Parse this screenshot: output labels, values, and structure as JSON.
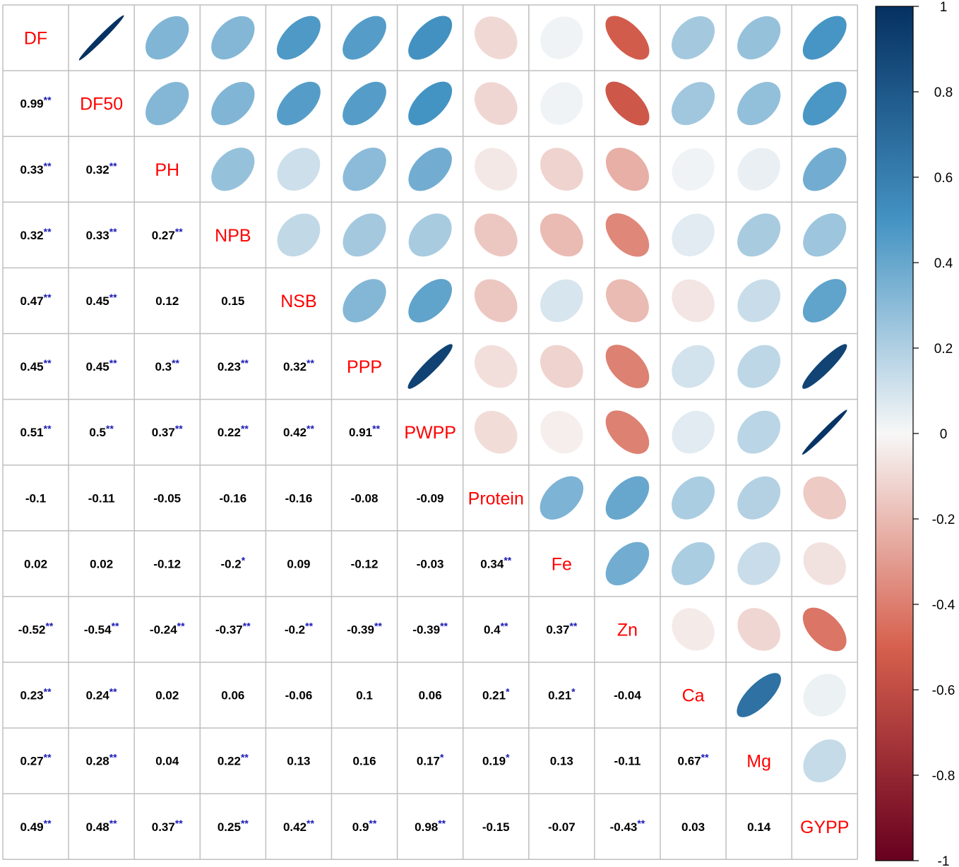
{
  "chart_data": {
    "type": "heatmap",
    "variables": [
      "DF",
      "DF50",
      "PH",
      "NPB",
      "NSB",
      "PPP",
      "PWPP",
      "Protein",
      "Fe",
      "Zn",
      "Ca",
      "Mg",
      "GYPP"
    ],
    "lower_labels": [
      [],
      [
        "0.99"
      ],
      [
        "0.33",
        "0.32"
      ],
      [
        "0.32",
        "0.33",
        "0.27"
      ],
      [
        "0.47",
        "0.45",
        "0.12",
        "0.15"
      ],
      [
        "0.45",
        "0.45",
        "0.3",
        "0.23",
        "0.32"
      ],
      [
        "0.51",
        "0.5",
        "0.37",
        "0.22",
        "0.42",
        "0.91"
      ],
      [
        "-0.1",
        "-0.11",
        "-0.05",
        "-0.16",
        "-0.16",
        "-0.08",
        "-0.09"
      ],
      [
        "0.02",
        "0.02",
        "-0.12",
        "-0.2",
        "0.09",
        "-0.12",
        "-0.03",
        "0.34"
      ],
      [
        "-0.52",
        "-0.54",
        "-0.24",
        "-0.37",
        "-0.2",
        "-0.39",
        "-0.39",
        "0.4",
        "0.37"
      ],
      [
        "0.23",
        "0.24",
        "0.02",
        "0.06",
        "-0.06",
        "0.1",
        "0.06",
        "0.21",
        "0.21",
        "-0.04"
      ],
      [
        "0.27",
        "0.28",
        "0.04",
        "0.22",
        "0.13",
        "0.16",
        "0.17",
        "0.19",
        "0.13",
        "-0.11",
        "0.67"
      ],
      [
        "0.49",
        "0.48",
        "0.37",
        "0.25",
        "0.42",
        "0.9",
        "0.98",
        "-0.15",
        "-0.07",
        "-0.43",
        "0.03",
        "0.14"
      ]
    ],
    "significance": [
      [],
      [
        "**"
      ],
      [
        "**",
        "**"
      ],
      [
        "**",
        "**",
        "**"
      ],
      [
        "**",
        "**",
        "",
        ""
      ],
      [
        "**",
        "**",
        "**",
        "**",
        "**"
      ],
      [
        "**",
        "**",
        "**",
        "**",
        "**",
        "**"
      ],
      [
        "",
        "",
        "",
        "",
        "",
        "",
        ""
      ],
      [
        "",
        "",
        "",
        "*",
        "",
        "",
        "",
        "**"
      ],
      [
        "**",
        "**",
        "**",
        "**",
        "**",
        "**",
        "**",
        "**",
        "**"
      ],
      [
        "**",
        "**",
        "",
        "",
        "",
        "",
        "",
        "*",
        "*",
        ""
      ],
      [
        "**",
        "**",
        "",
        "**",
        "",
        "",
        "*",
        "*",
        "",
        "",
        "**"
      ],
      [
        "**",
        "**",
        "**",
        "**",
        "**",
        "**",
        "**",
        "",
        "",
        "**",
        "",
        ""
      ]
    ],
    "colorbar_ticks": [
      "1",
      "0.8",
      "0.6",
      "0.4",
      "0.2",
      "0",
      "-0.2",
      "-0.4",
      "-0.6",
      "-0.8",
      "-1"
    ],
    "colors": {
      "negative_end": "#67001F",
      "negative_mid": "#D6604D",
      "neutral": "#F7F7F7",
      "positive_mid": "#4393C3",
      "positive_end": "#053061",
      "diagonal_label": "#FF0000",
      "star": "#1A1AB5",
      "grid": "#BFBFBF"
    }
  }
}
